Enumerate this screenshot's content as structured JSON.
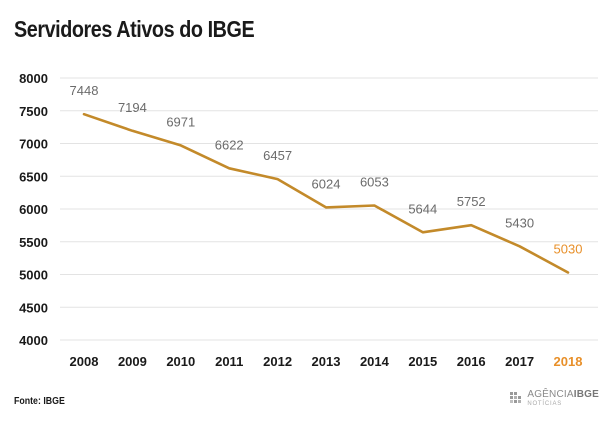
{
  "title": "Servidores Ativos do IBGE",
  "source": "Fonte: IBGE",
  "logo": {
    "word": "AGÊNCIA",
    "brand": "IBGE",
    "sub": "NOTÍCIAS"
  },
  "colors": {
    "line": "#c38a2a",
    "highlight": "#e8902a",
    "label": "#6b6b6b",
    "grid": "#e3e3e3",
    "axis_text": "#1a1a1a"
  },
  "chart_data": {
    "type": "line",
    "categories": [
      "2008",
      "2009",
      "2010",
      "2011",
      "2012",
      "2013",
      "2014",
      "2015",
      "2016",
      "2017",
      "2018"
    ],
    "series": [
      {
        "values": [
          7448,
          7194,
          6971,
          6622,
          6457,
          6024,
          6053,
          5644,
          5752,
          5430,
          5030
        ]
      }
    ],
    "ylim": [
      4000,
      8000
    ],
    "yticks": [
      4000,
      4500,
      5000,
      5500,
      6000,
      6500,
      7000,
      7500,
      8000
    ],
    "highlight_category": "2018",
    "grid": true,
    "data_labels": true
  }
}
